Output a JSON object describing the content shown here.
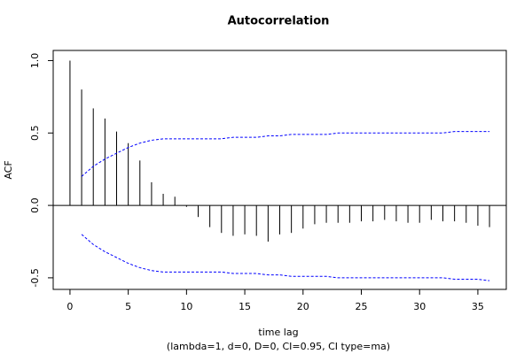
{
  "chart_data": {
    "type": "stem",
    "title": "Autocorrelation",
    "xlabel": "time lag",
    "subtitle": "(lambda=1, d=0, D=0, CI=0.95, CI type=ma)",
    "ylabel": "ACF",
    "color": "#000000",
    "x": [
      0,
      1,
      2,
      3,
      4,
      5,
      6,
      7,
      8,
      9,
      10,
      11,
      12,
      13,
      14,
      15,
      16,
      17,
      18,
      19,
      20,
      21,
      22,
      23,
      24,
      25,
      26,
      27,
      28,
      29,
      30,
      31,
      32,
      33,
      34,
      35,
      36
    ],
    "values": [
      1.0,
      0.8,
      0.67,
      0.6,
      0.51,
      0.43,
      0.31,
      0.16,
      0.08,
      0.06,
      -0.01,
      -0.08,
      -0.15,
      -0.19,
      -0.21,
      -0.2,
      -0.21,
      -0.25,
      -0.2,
      -0.19,
      -0.16,
      -0.13,
      -0.12,
      -0.12,
      -0.12,
      -0.11,
      -0.11,
      -0.1,
      -0.11,
      -0.12,
      -0.12,
      -0.1,
      -0.11,
      -0.11,
      -0.12,
      -0.14,
      -0.15
    ],
    "confidence_bands": [
      {
        "color": "#0000ff",
        "x": [
          1,
          2,
          3,
          4,
          5,
          6,
          7,
          8,
          9,
          10,
          11,
          12,
          13,
          14,
          15,
          16,
          17,
          18,
          19,
          20,
          21,
          22,
          23,
          24,
          25,
          26,
          27,
          28,
          29,
          30,
          31,
          32,
          33,
          34,
          35,
          36
        ],
        "values": [
          0.2,
          0.27,
          0.32,
          0.36,
          0.4,
          0.43,
          0.45,
          0.46,
          0.46,
          0.46,
          0.46,
          0.46,
          0.46,
          0.47,
          0.47,
          0.47,
          0.48,
          0.48,
          0.49,
          0.49,
          0.49,
          0.49,
          0.5,
          0.5,
          0.5,
          0.5,
          0.5,
          0.5,
          0.5,
          0.5,
          0.5,
          0.5,
          0.51,
          0.51,
          0.51,
          0.51
        ]
      },
      {
        "color": "#0000ff",
        "x": [
          1,
          2,
          3,
          4,
          5,
          6,
          7,
          8,
          9,
          10,
          11,
          12,
          13,
          14,
          15,
          16,
          17,
          18,
          19,
          20,
          21,
          22,
          23,
          24,
          25,
          26,
          27,
          28,
          29,
          30,
          31,
          32,
          33,
          34,
          35,
          36
        ],
        "values": [
          -0.2,
          -0.27,
          -0.32,
          -0.36,
          -0.4,
          -0.43,
          -0.45,
          -0.46,
          -0.46,
          -0.46,
          -0.46,
          -0.46,
          -0.46,
          -0.47,
          -0.47,
          -0.47,
          -0.48,
          -0.48,
          -0.49,
          -0.49,
          -0.49,
          -0.49,
          -0.5,
          -0.5,
          -0.5,
          -0.5,
          -0.5,
          -0.5,
          -0.5,
          -0.5,
          -0.5,
          -0.5,
          -0.51,
          -0.51,
          -0.51,
          -0.52
        ]
      }
    ],
    "xlim": [
      -1.44,
      37.44
    ],
    "ylim": [
      -0.58,
      1.07
    ],
    "xticks": [
      0,
      5,
      10,
      15,
      20,
      25,
      30,
      35
    ],
    "yticks": [
      {
        "value": 1.0,
        "label": "1.0"
      },
      {
        "value": 0.5,
        "label": "0.5"
      },
      {
        "value": 0,
        "label": "0.0"
      },
      {
        "value": -0.5,
        "label": "-0.5"
      }
    ]
  }
}
